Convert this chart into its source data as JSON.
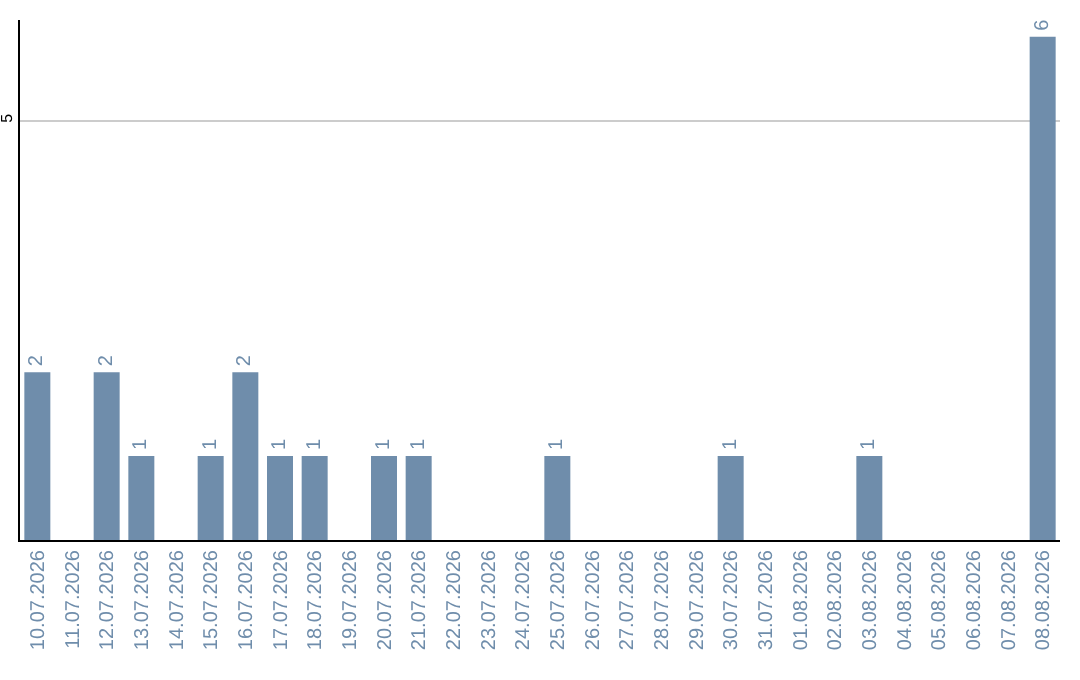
{
  "chart_data": {
    "type": "bar",
    "categories": [
      "10.07.2026",
      "11.07.2026",
      "12.07.2026",
      "13.07.2026",
      "14.07.2026",
      "15.07.2026",
      "16.07.2026",
      "17.07.2026",
      "18.07.2026",
      "19.07.2026",
      "20.07.2026",
      "21.07.2026",
      "22.07.2026",
      "23.07.2026",
      "24.07.2026",
      "25.07.2026",
      "26.07.2026",
      "27.07.2026",
      "28.07.2026",
      "29.07.2026",
      "30.07.2026",
      "31.07.2026",
      "01.08.2026",
      "02.08.2026",
      "03.08.2026",
      "04.08.2026",
      "05.08.2026",
      "06.08.2026",
      "07.08.2026",
      "08.08.2026"
    ],
    "values": [
      2,
      0,
      2,
      1,
      0,
      1,
      2,
      1,
      1,
      0,
      1,
      1,
      0,
      0,
      0,
      1,
      0,
      0,
      0,
      0,
      1,
      0,
      0,
      0,
      1,
      0,
      0,
      0,
      0,
      6
    ],
    "value_labels": [
      "2",
      null,
      "2",
      "1",
      null,
      "1",
      "2",
      "1",
      "1",
      null,
      "1",
      "1",
      null,
      null,
      null,
      "1",
      null,
      null,
      null,
      null,
      "1",
      null,
      null,
      null,
      "1",
      null,
      null,
      null,
      null,
      "6"
    ],
    "color": "#6f8dab",
    "ylim": [
      0,
      6.2
    ],
    "yticks": [
      5
    ],
    "grid": "y"
  }
}
